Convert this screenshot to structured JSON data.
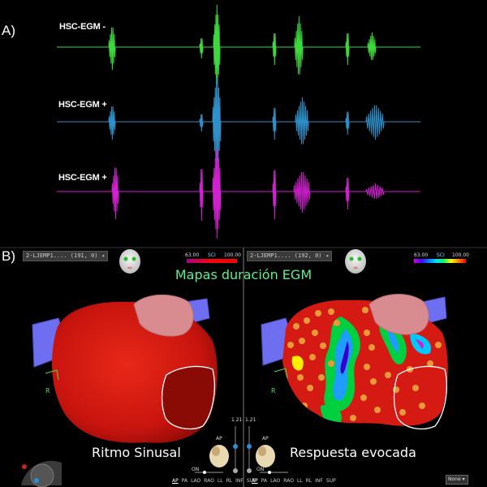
{
  "panel_a": {
    "label": "A)"
  },
  "panel_b": {
    "label": "B)"
  },
  "channels": [
    {
      "label": "HSC-EGM -",
      "color": "#3dd83d"
    },
    {
      "label": "HSC-EGM +",
      "color": "#2f8fc8"
    },
    {
      "label": "HSC-EGM +",
      "color": "#d021d0"
    }
  ],
  "map_title": "Mapas duración EGM",
  "left_map": {
    "toolbar_text": "2-LJEMP1.... (191, 0)",
    "caption": "Ritmo Sinusal",
    "zoom": "1.21",
    "orientation_label": "AP",
    "marker_letter": "R"
  },
  "right_map": {
    "toolbar_text": "2-LJEMP1.... (192, 0)",
    "caption": "Respuesta evocada",
    "scale_min": "63.00",
    "scale_unit": "SCI",
    "scale_max": "100.00",
    "zoom": "1.21",
    "orientation_label": "AP",
    "marker_letter": "R"
  },
  "left_scale": {
    "min": "63.00",
    "unit": "SCI",
    "max": "100.00"
  },
  "view_buttons": {
    "left": [
      "AP",
      "PA",
      "LAO",
      "RAO",
      "LL",
      "RL",
      "INF",
      "SUP"
    ],
    "right": [
      "AP",
      "PA",
      "LAO",
      "RAO",
      "LL",
      "RL",
      "INF",
      "SUP"
    ]
  },
  "toggle_label": "ON",
  "select_value": "None",
  "colors": {
    "background": "#000000",
    "map_red": "#d41a12",
    "valve_outline": "#ffffff",
    "vessel_blue": "#6e6ef0",
    "appendage_pink": "#d98c90",
    "title_green": "#5ef08a"
  }
}
